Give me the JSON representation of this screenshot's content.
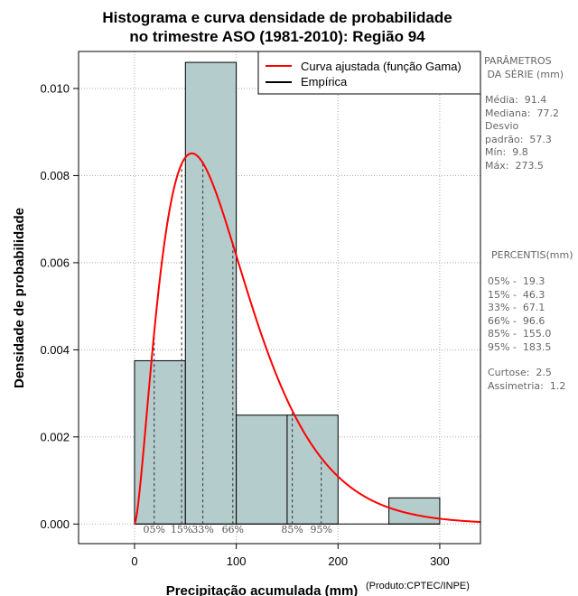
{
  "chart_data": {
    "type": "histogram",
    "title_lines": [
      "Histograma e curva densidade de probabilidade",
      "no trimestre ASO (1981-2010): Região 94"
    ],
    "xlabel": "Precipitação acumulada (mm)",
    "ylabel": "Densidade de probabilidade",
    "xlim": [
      -55,
      340
    ],
    "ylim": [
      -0.00045,
      0.01085
    ],
    "x_ticks": [
      0,
      100,
      200,
      300
    ],
    "y_ticks": [
      0.0,
      0.002,
      0.004,
      0.006,
      0.008,
      0.01
    ],
    "y_tick_labels": [
      "0.000",
      "0.002",
      "0.004",
      "0.006",
      "0.008",
      "0.010"
    ],
    "bins": [
      {
        "x0": 0,
        "x1": 50,
        "density": 0.00375
      },
      {
        "x0": 50,
        "x1": 100,
        "density": 0.0106
      },
      {
        "x0": 100,
        "x1": 150,
        "density": 0.0025
      },
      {
        "x0": 150,
        "x1": 200,
        "density": 0.0025
      },
      {
        "x0": 200,
        "x1": 250,
        "density": 0.0
      },
      {
        "x0": 250,
        "x1": 300,
        "density": 0.0006
      }
    ],
    "gamma_fit": {
      "shape": 2.6,
      "scale": 35.2
    },
    "percentile_lines": [
      {
        "label": "05%",
        "value": 19.3
      },
      {
        "label": "15%",
        "value": 46.3
      },
      {
        "label": "33%",
        "value": 67.1
      },
      {
        "label": "66%",
        "value": 96.6
      },
      {
        "label": "85%",
        "value": 155.0
      },
      {
        "label": "95%",
        "value": 183.5
      }
    ],
    "legend": {
      "position": "top-right",
      "entries": [
        {
          "label": "Curva ajustada (função Gama)",
          "color": "#ff0000"
        },
        {
          "label": "Empírica",
          "color": "#000000"
        }
      ]
    },
    "credit": "(Produto:CPTEC/INPE)",
    "colors": {
      "bar_fill": "#b4cccb",
      "curve": "#ff0000",
      "grid": "#aaaaaa"
    }
  },
  "side_panel": {
    "params_title": "PARÂMETROS\n DA SÉRIE (mm)",
    "params": "Média:  91.4\nMediana:  77.2\nDesvio\npadrão:  57.3\nMín:  9.8\nMáx:  273.5",
    "percentis_title": "PERCENTIS(mm)",
    "percentis": "05% -  19.3\n15% -  46.3\n33% -  67.1\n66% -  96.6\n85% -  155.0\n95% -  183.5",
    "stats": "Curtose:  2.5\nAssimetria:  1.2"
  }
}
